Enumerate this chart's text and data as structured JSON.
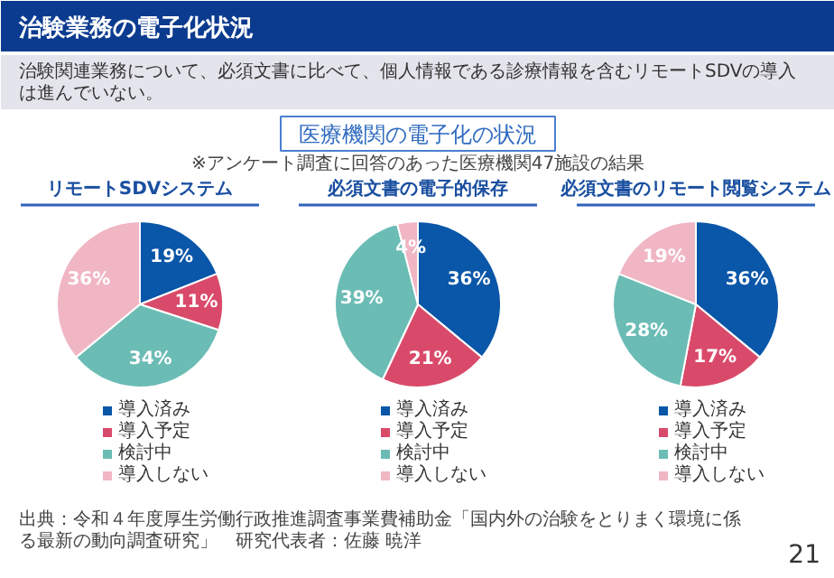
{
  "chart_data": [
    {
      "type": "other",
      "title": "治験業務の電子化状況",
      "subtitle": "治験関連業務について、必須文書に比べて、個人情報である診療情報を含むリモートSDVの導入は進んでいない。",
      "annotations": [
        "医療機関の電子化の状況",
        "※アンケート調査に回答のあった医療機関47施設の結果",
        "出典：令和４年度厚生労働行政推進調査事業費補助金「国内外の治験をとりまく環境に係る最新の動向調査研究」　研究代表者：佐藤 暁洋",
        "21"
      ]
    },
    {
      "type": "pie",
      "title": "リモートSDVシステム",
      "categories": [
        "導入済み",
        "導入予定",
        "検討中",
        "導入しない"
      ],
      "values": [
        19,
        11,
        34,
        36
      ],
      "colors": [
        "#0a56a8",
        "#d94a6a",
        "#6bbcb5",
        "#f0b6c4"
      ],
      "value_labels": [
        "19%",
        "11%",
        "34%",
        "36%"
      ],
      "legend": "bottom"
    },
    {
      "type": "pie",
      "title": "必須文書の電子的保存",
      "categories": [
        "導入済み",
        "導入予定",
        "検討中",
        "導入しない"
      ],
      "values": [
        36,
        21,
        39,
        4
      ],
      "colors": [
        "#0a56a8",
        "#d94a6a",
        "#6bbcb5",
        "#f0b6c4"
      ],
      "value_labels": [
        "36%",
        "21%",
        "39%",
        "4%"
      ],
      "legend": "bottom"
    },
    {
      "type": "pie",
      "title": "必須文書のリモート閲覧システム",
      "categories": [
        "導入済み",
        "導入予定",
        "検討中",
        "導入しない"
      ],
      "values": [
        36,
        17,
        28,
        19
      ],
      "colors": [
        "#0a56a8",
        "#d94a6a",
        "#6bbcb5",
        "#f0b6c4"
      ],
      "value_labels": [
        "36%",
        "17%",
        "28%",
        "19%"
      ],
      "legend": "bottom"
    }
  ]
}
